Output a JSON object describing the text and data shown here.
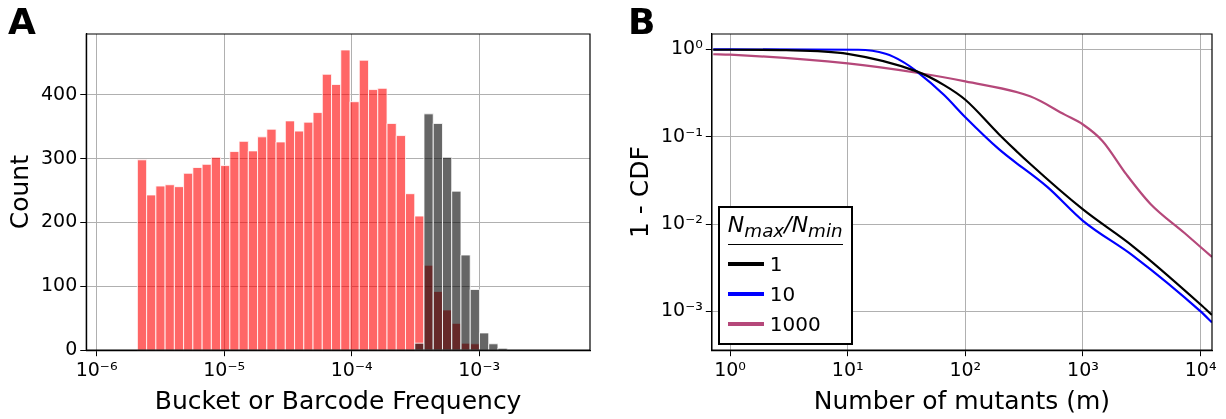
{
  "chart_data": [
    {
      "type": "histogram",
      "title": "A",
      "xlabel": "Bucket or Barcode Frequency",
      "ylabel": "Count",
      "log": "x",
      "grid": true,
      "bins": [
        9.07e-07,
        1.072e-06,
        1.266e-06,
        1.496e-06,
        1.768e-06,
        2.089e-06,
        2.469e-06,
        2.917e-06,
        3.447e-06,
        4.074e-06,
        4.813e-06,
        5.689e-06,
        6.723e-06,
        7.943e-06,
        9.387e-06,
        1.109e-05,
        1.311e-05,
        1.549e-05,
        1.83e-05,
        2.163e-05,
        2.556e-05,
        3.02e-05,
        3.569e-05,
        4.217e-05,
        4.983e-05,
        5.888e-05,
        6.958e-05,
        8.222e-05,
        9.716e-05,
        0.0001148,
        0.0001357,
        0.0001603,
        0.0001895,
        0.0002239,
        0.0002646,
        0.0003126,
        0.0003694,
        0.0004365,
        0.0005158,
        0.0006095,
        0.0007202,
        0.0008511,
        0.001006,
        0.001189,
        0.001404,
        0.00166,
        0.001961,
        0.002317,
        0.002738,
        0.003236,
        0.003824,
        0.004519,
        0.00534,
        0.00631
      ],
      "series": [
        {
          "color": "#ff0000",
          "values": [
            0,
            0,
            0,
            0,
            0,
            298,
            243,
            257,
            259,
            256,
            277,
            286,
            291,
            302,
            289,
            311,
            327,
            312,
            334,
            346,
            326,
            359,
            343,
            357,
            372,
            432,
            416,
            470,
            389,
            454,
            408,
            410,
            355,
            336,
            245,
            210,
            133,
            92,
            63,
            42,
            11,
            10,
            0,
            0,
            0,
            0,
            0,
            0,
            0,
            0,
            0,
            0,
            0
          ]
        },
        {
          "color": "#000000",
          "values": [
            0,
            0,
            0,
            0,
            0,
            0,
            0,
            0,
            0,
            0,
            0,
            0,
            0,
            0,
            0,
            0,
            0,
            0,
            0,
            0,
            0,
            0,
            0,
            0,
            0,
            0,
            0,
            0,
            0,
            0,
            0,
            0,
            0,
            0,
            0,
            11,
            370,
            355,
            302,
            249,
            149,
            95,
            27,
            10,
            3,
            0,
            0,
            0,
            0,
            0,
            0,
            0,
            0
          ]
        }
      ],
      "xlim": [
        8.3e-07,
        0.0074
      ],
      "xticks": [
        {
          "value": 1e-06,
          "label": "10⁻⁶"
        },
        {
          "value": 1e-05,
          "label": "10⁻⁵"
        },
        {
          "value": 0.0001,
          "label": "10⁻⁴"
        },
        {
          "value": 0.001,
          "label": "10⁻³"
        }
      ],
      "ylim": [
        0,
        495
      ],
      "yticks": [
        0,
        100,
        200,
        300,
        400
      ]
    },
    {
      "type": "line",
      "title": "B",
      "xlabel": "Number of mutants (m)",
      "ylabel": "1 - CDF",
      "log": "xy",
      "grid": true,
      "marker": "none",
      "line_style": "solid",
      "legend": "bottom left",
      "legend_title": "N$_{max}$/N$_{min}$",
      "series": [
        {
          "name": "1",
          "color": "#000000",
          "x": [
            0.72,
            1,
            3,
            10,
            38.6,
            66,
            100,
            193,
            355,
            1000,
            2690,
            10000,
            12500
          ],
          "values": [
            0.99,
            0.99,
            0.98,
            0.89,
            0.56,
            0.39,
            0.265,
            0.107,
            0.049,
            0.0147,
            0.0055,
            0.0012,
            0.00091
          ]
        },
        {
          "name": "10",
          "color": "#0000ff",
          "x": [
            0.72,
            1,
            12.3,
            21,
            29.5,
            38.6,
            66,
            100,
            193,
            500,
            1000,
            2690,
            10000,
            12500
          ],
          "values": [
            1,
            1,
            0.99,
            0.89,
            0.72,
            0.56,
            0.3,
            0.167,
            0.072,
            0.0265,
            0.0109,
            0.0043,
            0.001,
            0.00075
          ]
        },
        {
          "name": "1000",
          "color": "#b5487a",
          "x": [
            0.72,
            1,
            10,
            38.6,
            100,
            355,
            700,
            1000,
            1470,
            2340,
            3750,
            7300,
            12500
          ],
          "values": [
            0.88,
            0.87,
            0.69,
            0.54,
            0.43,
            0.29,
            0.179,
            0.138,
            0.089,
            0.037,
            0.017,
            0.0079,
            0.0042
          ]
        }
      ],
      "xlim": [
        0.72,
        12500
      ],
      "xticks": [
        {
          "value": 1,
          "label": "10⁰"
        },
        {
          "value": 10,
          "label": "10¹"
        },
        {
          "value": 100,
          "label": "10²"
        },
        {
          "value": 1000,
          "label": "10³"
        },
        {
          "value": 10000,
          "label": "10⁴"
        }
      ],
      "ylim": [
        0.00036,
        1.5
      ],
      "yticks": [
        {
          "value": 0.001,
          "label": "10⁻³"
        },
        {
          "value": 0.01,
          "label": "10⁻²"
        },
        {
          "value": 0.1,
          "label": "10⁻¹"
        },
        {
          "value": 1,
          "label": "10⁰"
        }
      ]
    }
  ]
}
